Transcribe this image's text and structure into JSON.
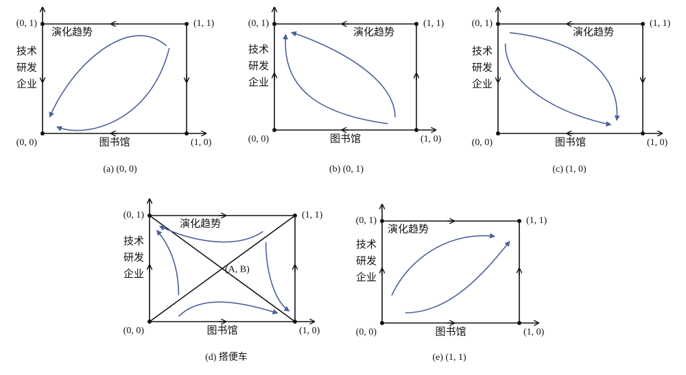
{
  "panels": [
    {
      "caption": "(a) (0, 0)",
      "corner_01": "(0, 1)",
      "corner_11": "(1, 1)",
      "corner_00": "(0, 0)",
      "corner_10": "(1, 0)",
      "trend": "演化趋势",
      "x_label": "图书馆",
      "y_label": [
        "技术",
        "研发",
        "企业"
      ]
    },
    {
      "caption": "(b) (0, 1)",
      "corner_01": "(0, 1)",
      "corner_11": "(1, 1)",
      "corner_00": "(0, 0)",
      "corner_10": "(1, 0)",
      "trend": "演化趋势",
      "x_label": "图书馆",
      "y_label": [
        "技术",
        "研发",
        "企业"
      ]
    },
    {
      "caption": "(c) (1, 0)",
      "corner_01": "(0, 1)",
      "corner_11": "(1, 1)",
      "corner_00": "(0, 0)",
      "corner_10": "(1, 0)",
      "trend": "演化趋势",
      "x_label": "图书馆",
      "y_label": [
        "技术",
        "研发",
        "企业"
      ]
    },
    {
      "caption": "(d)  搭便车",
      "corner_01": "(0, 1)",
      "corner_11": "(1, 1)",
      "corner_00": "(0, 0)",
      "corner_10": "(1, 0)",
      "trend": "演化趋势",
      "x_label": "图书馆",
      "y_label": [
        "技术",
        "研发",
        "企业"
      ],
      "saddle": "(A, B)"
    },
    {
      "caption": "(e) (1, 1)",
      "corner_01": "(0, 1)",
      "corner_11": "(1, 1)",
      "corner_00": "(0, 0)",
      "corner_10": "(1, 0)",
      "trend": "演化趋势",
      "x_label": "图书馆",
      "y_label": [
        "技术",
        "研发",
        "企业"
      ]
    }
  ]
}
